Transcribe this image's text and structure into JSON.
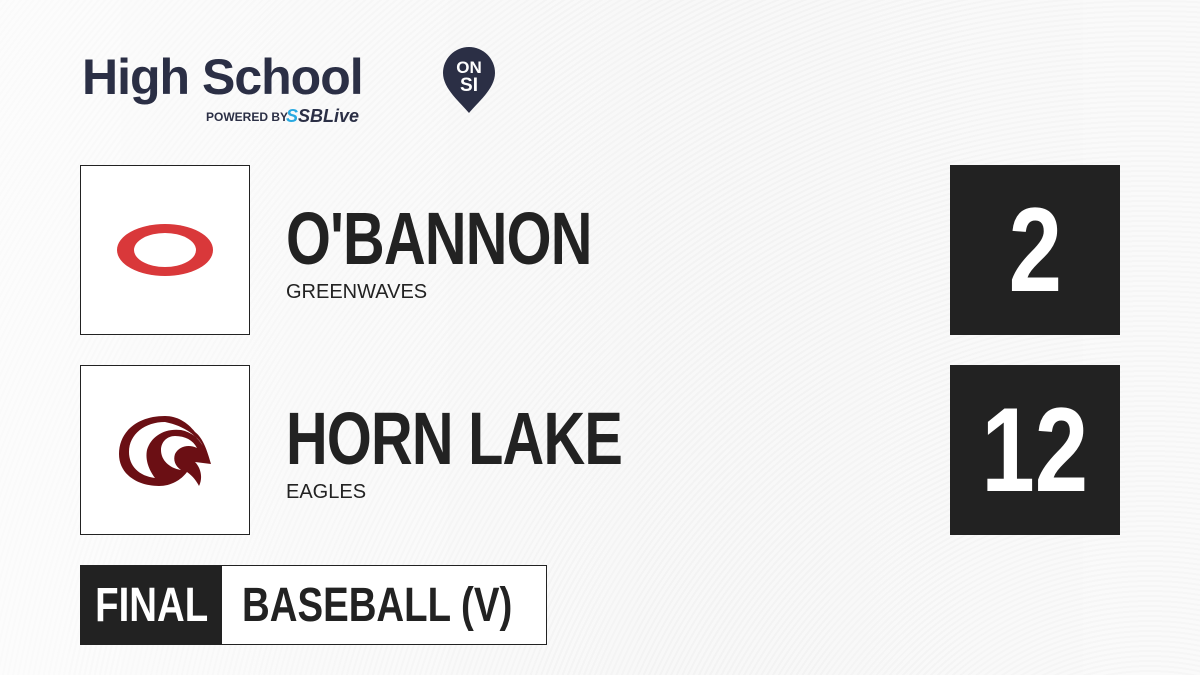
{
  "brand": {
    "title": "High School",
    "badge_top": "ON",
    "badge_bottom": "SI",
    "powered_by": "POWERED BY",
    "partner_prefix": "S",
    "partner": "SBLive"
  },
  "teams": [
    {
      "name": "O'BANNON",
      "mascot": "GREENWAVES",
      "score": "2",
      "logo_color": "#d9383a"
    },
    {
      "name": "HORN LAKE",
      "mascot": "EAGLES",
      "score": "12",
      "logo_color": "#6b0f14"
    }
  ],
  "status": "FINAL",
  "sport": "BASEBALL (V)"
}
